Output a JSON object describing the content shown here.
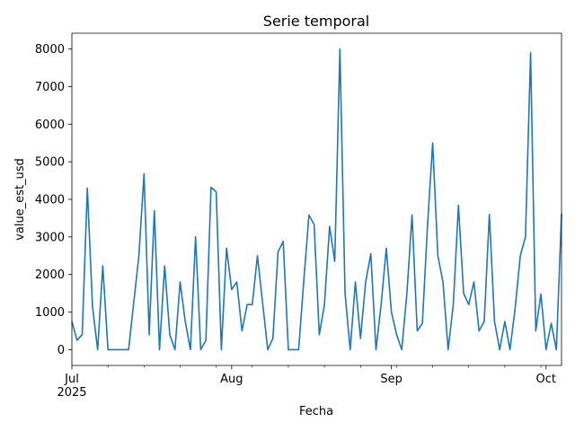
{
  "chart_data": {
    "type": "line",
    "title": "Serie temporal",
    "xlabel": "Fecha",
    "ylabel": "value_est_usd",
    "xlim": [
      "2025-07-01",
      "2025-10-04"
    ],
    "ylim": [
      -420,
      8420
    ],
    "grid": false,
    "color": "#1f77b4",
    "x_tick_labels": [
      {
        "date": "2025-07-01",
        "label": "Jul",
        "sublabel": "2025"
      },
      {
        "date": "2025-08-01",
        "label": "Aug",
        "sublabel": ""
      },
      {
        "date": "2025-09-01",
        "label": "Sep",
        "sublabel": ""
      },
      {
        "date": "2025-10-01",
        "label": "Oct",
        "sublabel": ""
      }
    ],
    "y_tick_labels": [
      "0",
      "1000",
      "2000",
      "3000",
      "4000",
      "5000",
      "6000",
      "7000",
      "8000"
    ],
    "y_tick_values": [
      0,
      1000,
      2000,
      3000,
      4000,
      5000,
      6000,
      7000,
      8000
    ],
    "minor_tick_dates": [
      "2025-07-08",
      "2025-07-15",
      "2025-07-22",
      "2025-07-29",
      "2025-08-05",
      "2025-08-12",
      "2025-08-19",
      "2025-08-26",
      "2025-09-02",
      "2025-09-09",
      "2025-09-16",
      "2025-09-23",
      "2025-09-30"
    ],
    "series": [
      {
        "x": [
          "2025-07-01",
          "2025-07-02",
          "2025-07-03",
          "2025-07-04",
          "2025-07-05",
          "2025-07-06",
          "2025-07-07",
          "2025-07-08",
          "2025-07-09",
          "2025-07-10",
          "2025-07-11",
          "2025-07-12",
          "2025-07-13",
          "2025-07-14",
          "2025-07-15",
          "2025-07-16",
          "2025-07-17",
          "2025-07-18",
          "2025-07-19",
          "2025-07-20",
          "2025-07-21",
          "2025-07-22",
          "2025-07-23",
          "2025-07-24",
          "2025-07-25",
          "2025-07-26",
          "2025-07-27",
          "2025-07-28",
          "2025-07-29",
          "2025-07-30",
          "2025-07-31",
          "2025-08-01",
          "2025-08-02",
          "2025-08-03",
          "2025-08-04",
          "2025-08-05",
          "2025-08-06",
          "2025-08-07",
          "2025-08-08",
          "2025-08-09",
          "2025-08-10",
          "2025-08-11",
          "2025-08-12",
          "2025-08-13",
          "2025-08-14",
          "2025-08-15",
          "2025-08-16",
          "2025-08-17",
          "2025-08-18",
          "2025-08-19",
          "2025-08-20",
          "2025-08-21",
          "2025-08-22",
          "2025-08-23",
          "2025-08-24",
          "2025-08-25",
          "2025-08-26",
          "2025-08-27",
          "2025-08-28",
          "2025-08-29",
          "2025-08-30",
          "2025-08-31",
          "2025-09-01",
          "2025-09-02",
          "2025-09-03",
          "2025-09-04",
          "2025-09-05",
          "2025-09-06",
          "2025-09-07",
          "2025-09-08",
          "2025-09-09",
          "2025-09-10",
          "2025-09-11",
          "2025-09-12",
          "2025-09-13",
          "2025-09-14",
          "2025-09-15",
          "2025-09-16",
          "2025-09-17",
          "2025-09-18",
          "2025-09-19",
          "2025-09-20",
          "2025-09-21",
          "2025-09-22",
          "2025-09-23",
          "2025-09-24",
          "2025-09-25",
          "2025-09-26",
          "2025-09-27",
          "2025-09-28",
          "2025-09-29",
          "2025-09-30",
          "2025-10-01",
          "2025-10-02",
          "2025-10-03",
          "2025-10-04"
        ],
        "values": [
          750,
          250,
          400,
          4300,
          1150,
          0,
          2230,
          0,
          0,
          0,
          0,
          0,
          1250,
          2500,
          4680,
          400,
          3700,
          0,
          2230,
          400,
          0,
          1800,
          750,
          0,
          3000,
          0,
          250,
          4320,
          4200,
          0,
          2700,
          1600,
          1800,
          500,
          1200,
          1200,
          2500,
          1250,
          0,
          300,
          2600,
          2880,
          0,
          0,
          0,
          1850,
          3580,
          3330,
          400,
          1200,
          3280,
          2350,
          8000,
          1500,
          0,
          1800,
          300,
          1800,
          2550,
          0,
          1200,
          2700,
          1000,
          400,
          0,
          1500,
          3580,
          500,
          700,
          3300,
          5500,
          2500,
          1800,
          0,
          1200,
          3840,
          1500,
          1200,
          1800,
          500,
          750,
          3600,
          750,
          0,
          750,
          0,
          1100,
          2500,
          3000,
          7900,
          500,
          1480,
          0,
          700,
          0,
          3620
        ]
      }
    ]
  }
}
